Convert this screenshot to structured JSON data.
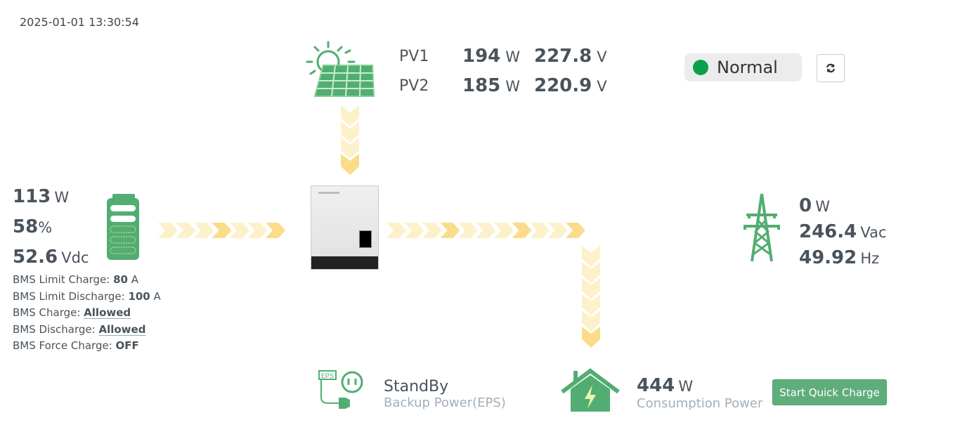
{
  "timestamp": "2025-01-01 13:30:54",
  "pv": [
    {
      "label": "PV1",
      "power": "194",
      "power_unit": "W",
      "voltage": "227.8",
      "voltage_unit": "V"
    },
    {
      "label": "PV2",
      "power": "185",
      "power_unit": "W",
      "voltage": "220.9",
      "voltage_unit": "V"
    }
  ],
  "status": {
    "label": "Normal",
    "color": "#0aa14b"
  },
  "battery": {
    "power": "113",
    "power_unit": "W",
    "soc": "58",
    "soc_unit": "%",
    "voltage": "52.6",
    "voltage_unit": "Vdc",
    "bms": [
      {
        "label": "BMS Limit Charge: ",
        "value": "80",
        "unit": " A"
      },
      {
        "label": "BMS Limit Discharge: ",
        "value": "100",
        "unit": " A"
      },
      {
        "label": "BMS Charge: ",
        "value": "Allowed"
      },
      {
        "label": "BMS Discharge: ",
        "value": "Allowed"
      },
      {
        "label": "BMS Force Charge: ",
        "value": "OFF"
      }
    ]
  },
  "grid": {
    "power": "0",
    "power_unit": "W",
    "voltage": "246.4",
    "voltage_unit": "Vac",
    "frequency": "49.92",
    "frequency_unit": "Hz"
  },
  "eps": {
    "status": "StandBy",
    "label": "Backup Power(EPS)"
  },
  "consumption": {
    "power": "444",
    "power_unit": "W",
    "label": "Consumption Power"
  },
  "quick_charge_button": "Start Quick Charge",
  "colors": {
    "accent_green": "#52ad72",
    "flow_light": "#fdf1cc",
    "flow_dark": "#fbdc8a"
  }
}
